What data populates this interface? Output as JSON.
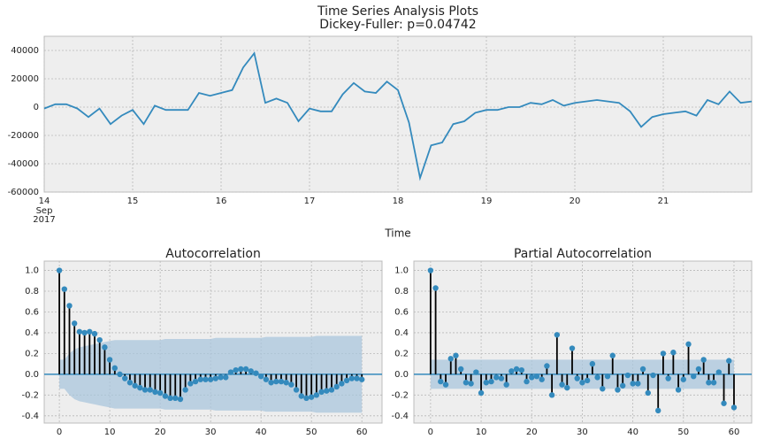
{
  "chart_data": [
    {
      "type": "line",
      "title": "Time Series Analysis Plots",
      "subtitle": "Dickey-Fuller: p=0.04742",
      "xlabel": "Time",
      "x": [
        14,
        14.125,
        14.25,
        14.375,
        14.5,
        14.625,
        14.75,
        14.875,
        15,
        15.125,
        15.25,
        15.375,
        15.5,
        15.625,
        15.75,
        15.875,
        16,
        16.125,
        16.25,
        16.375,
        16.5,
        16.625,
        16.75,
        16.875,
        17,
        17.125,
        17.25,
        17.375,
        17.5,
        17.625,
        17.75,
        17.875,
        18,
        18.125,
        18.25,
        18.375,
        18.5,
        18.625,
        18.75,
        18.875,
        19,
        19.125,
        19.25,
        19.375,
        19.5,
        19.625,
        19.75,
        19.875,
        20,
        20.125,
        20.25,
        20.375,
        20.5,
        20.625,
        20.75,
        20.875,
        21,
        21.125,
        21.25,
        21.375,
        21.5,
        21.625,
        21.75,
        21.875,
        22
      ],
      "values": [
        -1000,
        2000,
        2000,
        -1000,
        -7000,
        -1000,
        -12000,
        -6000,
        -2000,
        -12000,
        1000,
        -2000,
        -2000,
        -2000,
        10000,
        8000,
        10000,
        12000,
        28000,
        38000,
        3000,
        6000,
        3000,
        -10000,
        -1000,
        -3000,
        -3000,
        9000,
        17000,
        11000,
        10000,
        18000,
        12000,
        -11000,
        -50000,
        -27000,
        -25000,
        -12000,
        -10000,
        -4000,
        -2000,
        -2000,
        0,
        0,
        3000,
        2000,
        5000,
        1000,
        3000,
        4000,
        5000,
        4000,
        3000,
        -3000,
        -14000,
        -7000,
        -5000,
        -4000,
        -3000,
        -6000,
        5000,
        2000,
        11000,
        3000,
        4000
      ],
      "color": "#348abd",
      "xlim": [
        14,
        22
      ],
      "xticks": [
        14,
        15,
        16,
        17,
        18,
        19,
        20,
        21
      ],
      "x_tick_sublabels": [
        "Sep",
        "2017"
      ],
      "ylim": [
        -60000,
        50000
      ],
      "yticks": [
        40000,
        20000,
        0,
        -20000,
        -40000,
        -60000
      ],
      "grid": true
    },
    {
      "type": "stem",
      "title": "Autocorrelation",
      "x": [
        0,
        1,
        2,
        3,
        4,
        5,
        6,
        7,
        8,
        9,
        10,
        11,
        12,
        13,
        14,
        15,
        16,
        17,
        18,
        19,
        20,
        21,
        22,
        23,
        24,
        25,
        26,
        27,
        28,
        29,
        30,
        31,
        32,
        33,
        34,
        35,
        36,
        37,
        38,
        39,
        40,
        41,
        42,
        43,
        44,
        45,
        46,
        47,
        48,
        49,
        50,
        51,
        52,
        53,
        54,
        55,
        56,
        57,
        58,
        59,
        60
      ],
      "values": [
        1.0,
        0.82,
        0.66,
        0.49,
        0.41,
        0.4,
        0.41,
        0.39,
        0.33,
        0.26,
        0.14,
        0.06,
        0.0,
        -0.04,
        -0.08,
        -0.11,
        -0.13,
        -0.15,
        -0.15,
        -0.17,
        -0.18,
        -0.21,
        -0.23,
        -0.23,
        -0.24,
        -0.15,
        -0.09,
        -0.07,
        -0.05,
        -0.05,
        -0.05,
        -0.04,
        -0.03,
        -0.03,
        0.02,
        0.04,
        0.05,
        0.05,
        0.03,
        0.01,
        -0.02,
        -0.05,
        -0.08,
        -0.07,
        -0.07,
        -0.08,
        -0.1,
        -0.15,
        -0.21,
        -0.23,
        -0.22,
        -0.2,
        -0.17,
        -0.16,
        -0.15,
        -0.12,
        -0.09,
        -0.06,
        -0.04,
        -0.04,
        -0.05
      ],
      "confidence": [
        0.14,
        0.14,
        0.2,
        0.24,
        0.26,
        0.27,
        0.28,
        0.29,
        0.3,
        0.31,
        0.32,
        0.33,
        0.33,
        0.33,
        0.33,
        0.33,
        0.33,
        0.33,
        0.33,
        0.33,
        0.33,
        0.34,
        0.34,
        0.34,
        0.34,
        0.34,
        0.34,
        0.34,
        0.34,
        0.34,
        0.34,
        0.35,
        0.35,
        0.35,
        0.35,
        0.35,
        0.35,
        0.35,
        0.35,
        0.35,
        0.35,
        0.36,
        0.36,
        0.36,
        0.36,
        0.36,
        0.36,
        0.36,
        0.36,
        0.36,
        0.36,
        0.37,
        0.37,
        0.37,
        0.37,
        0.37,
        0.37,
        0.37,
        0.37,
        0.37,
        0.37
      ],
      "color": "#348abd",
      "band_color": "#a9c6dc",
      "xlim": [
        -3,
        64
      ],
      "xticks": [
        0,
        10,
        20,
        30,
        40,
        50,
        60
      ],
      "ylim": [
        -0.47,
        1.09
      ],
      "yticks": [
        {
          "value": 1,
          "label": "1.0"
        },
        0.8,
        0.6,
        0.4,
        0.2,
        {
          "value": 0,
          "label": "0.0"
        },
        -0.2,
        -0.4
      ],
      "grid": true
    },
    {
      "type": "stem",
      "title": "Partial Autocorrelation",
      "x": [
        0,
        1,
        2,
        3,
        4,
        5,
        6,
        7,
        8,
        9,
        10,
        11,
        12,
        13,
        14,
        15,
        16,
        17,
        18,
        19,
        20,
        21,
        22,
        23,
        24,
        25,
        26,
        27,
        28,
        29,
        30,
        31,
        32,
        33,
        34,
        35,
        36,
        37,
        38,
        39,
        40,
        41,
        42,
        43,
        44,
        45,
        46,
        47,
        48,
        49,
        50,
        51,
        52,
        53,
        54,
        55,
        56,
        57,
        58,
        59,
        60
      ],
      "values": [
        1.0,
        0.83,
        -0.07,
        -0.1,
        0.15,
        0.18,
        0.05,
        -0.08,
        -0.09,
        0.02,
        -0.18,
        -0.08,
        -0.07,
        -0.03,
        -0.04,
        -0.1,
        0.03,
        0.05,
        0.04,
        -0.07,
        -0.03,
        -0.02,
        -0.05,
        0.08,
        -0.2,
        0.38,
        -0.1,
        -0.13,
        0.25,
        -0.04,
        -0.08,
        -0.06,
        0.1,
        -0.03,
        -0.14,
        -0.02,
        0.18,
        -0.15,
        -0.11,
        -0.01,
        -0.09,
        -0.09,
        0.05,
        -0.18,
        -0.01,
        -0.35,
        0.2,
        -0.04,
        0.21,
        -0.15,
        -0.05,
        0.29,
        -0.02,
        0.05,
        0.14,
        -0.08,
        -0.08,
        0.02,
        -0.28,
        0.13,
        -0.32
      ],
      "confidence": [
        0.14,
        0.14,
        0.14,
        0.14,
        0.14,
        0.14,
        0.14,
        0.14,
        0.14,
        0.14,
        0.14,
        0.14,
        0.14,
        0.14,
        0.14,
        0.14,
        0.14,
        0.14,
        0.14,
        0.14,
        0.14,
        0.14,
        0.14,
        0.14,
        0.14,
        0.14,
        0.14,
        0.14,
        0.14,
        0.14,
        0.14,
        0.14,
        0.14,
        0.14,
        0.14,
        0.14,
        0.14,
        0.14,
        0.14,
        0.14,
        0.14,
        0.14,
        0.14,
        0.14,
        0.14,
        0.14,
        0.14,
        0.14,
        0.14,
        0.14,
        0.14,
        0.14,
        0.14,
        0.14,
        0.14,
        0.14,
        0.14,
        0.14,
        0.14,
        0.14,
        0.14
      ],
      "color": "#348abd",
      "band_color": "#a9c6dc",
      "xlim": [
        -3.3,
        63.5
      ],
      "xticks": [
        0,
        10,
        20,
        30,
        40,
        50,
        60
      ],
      "ylim": [
        -0.47,
        1.09
      ],
      "yticks": [
        {
          "value": 1,
          "label": "1.0"
        },
        0.8,
        0.6,
        0.4,
        0.2,
        {
          "value": 0,
          "label": "0.0"
        },
        -0.2,
        -0.4
      ],
      "grid": true
    }
  ]
}
